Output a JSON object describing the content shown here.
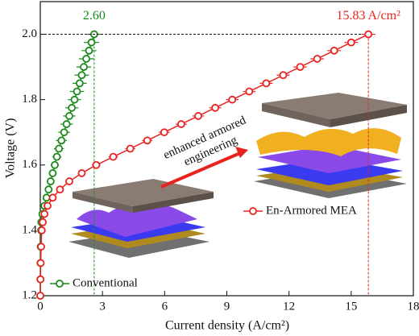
{
  "chart_data": {
    "type": "line",
    "xlabel": "Current density (A/cm²)",
    "ylabel": "Voltage (V)",
    "xlim": [
      0,
      18
    ],
    "xticks": [
      0,
      3,
      6,
      9,
      12,
      15,
      18
    ],
    "ylim": [
      1.2,
      2.1
    ],
    "yticks": [
      1.2,
      1.4,
      1.6,
      1.8,
      {
        "value": 2.0,
        "label": "2.0"
      }
    ],
    "annotation_lines": [
      "enhanced armored",
      "engineering"
    ],
    "series": [
      {
        "name": "Conventional",
        "color": "#1a8a1a",
        "end_label": "2.60",
        "x": [
          0,
          0.005,
          0.01,
          0.02,
          0.04,
          0.05,
          0.1,
          0.2,
          0.3,
          0.4,
          0.5,
          0.6,
          0.7,
          0.8,
          0.9,
          1.02,
          1.15,
          1.27,
          1.4,
          1.52,
          1.65,
          1.77,
          1.9,
          2.0,
          2.1,
          2.22,
          2.35,
          2.47,
          2.6
        ],
        "values": [
          1.2,
          1.25,
          1.3,
          1.35,
          1.4,
          1.425,
          1.45,
          1.475,
          1.5,
          1.525,
          1.55,
          1.575,
          1.6,
          1.625,
          1.65,
          1.675,
          1.7,
          1.725,
          1.75,
          1.775,
          1.8,
          1.825,
          1.85,
          1.875,
          1.9,
          1.925,
          1.95,
          1.975,
          2.0
        ],
        "errors": [
          0.02,
          0.02,
          0.03,
          0.04,
          0.05,
          0.06,
          0.08,
          0.1,
          0.12,
          0.14,
          0.16,
          0.18,
          0.2,
          0.22,
          0.24,
          0.26,
          0.28,
          0.3,
          0.3,
          0.32,
          0.32,
          0.34,
          0.34,
          0.35,
          0.35,
          0.36,
          0.36,
          0.37,
          0.37
        ]
      },
      {
        "name": "En-Armored MEA",
        "color": "#e8231f",
        "end_label": "15.83 A/cm²",
        "x": [
          0,
          0.01,
          0.02,
          0.04,
          0.07,
          0.12,
          0.2,
          0.35,
          0.6,
          0.95,
          1.4,
          2.0,
          2.7,
          3.52,
          4.34,
          5.16,
          5.98,
          6.8,
          7.62,
          8.44,
          9.26,
          10.08,
          10.9,
          11.72,
          12.54,
          13.36,
          14.18,
          15.0,
          15.83
        ],
        "values": [
          1.2,
          1.25,
          1.3,
          1.35,
          1.4,
          1.425,
          1.45,
          1.475,
          1.5,
          1.525,
          1.55,
          1.575,
          1.6,
          1.625,
          1.65,
          1.675,
          1.7,
          1.725,
          1.75,
          1.775,
          1.8,
          1.825,
          1.85,
          1.875,
          1.9,
          1.925,
          1.95,
          1.975,
          2.0
        ],
        "errors": [
          0.02,
          0.02,
          0.03,
          0.04,
          0.05,
          0.06,
          0.08,
          0.1,
          0.12,
          0.14,
          0.16,
          0.18,
          0.2,
          0.22,
          0.24,
          0.25,
          0.26,
          0.27,
          0.28,
          0.29,
          0.3,
          0.3,
          0.31,
          0.31,
          0.32,
          0.32,
          0.33,
          0.33,
          0.34
        ]
      }
    ]
  }
}
